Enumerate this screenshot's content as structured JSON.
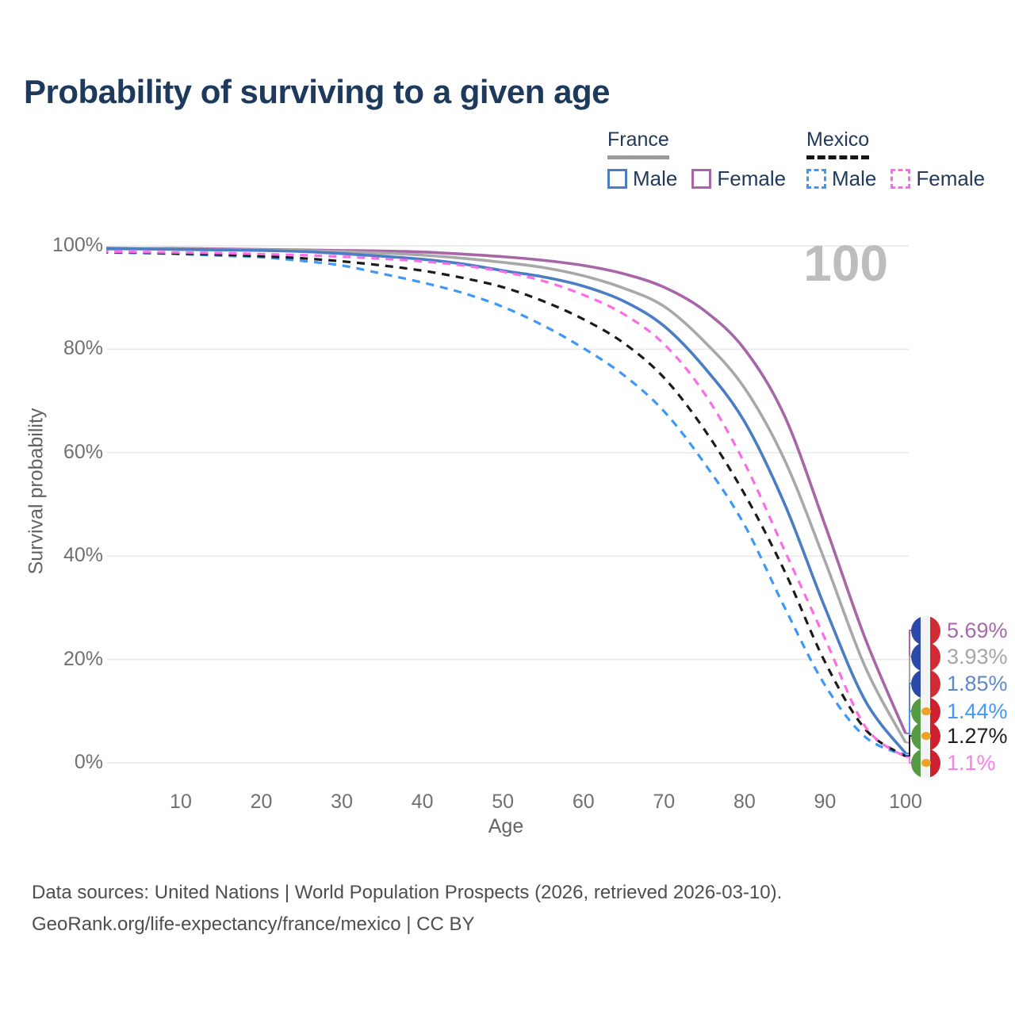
{
  "title": "Probability of surviving to a given age",
  "watermark": "100",
  "legend": {
    "groups": [
      {
        "country": "France",
        "line_style": "solid",
        "underline_color": "#9a9a9a",
        "items": [
          {
            "label": "Male",
            "color": "#4a7dc4"
          },
          {
            "label": "Female",
            "color": "#a766a7"
          }
        ]
      },
      {
        "country": "Mexico",
        "line_style": "dashed",
        "underline_color": "#141414",
        "items": [
          {
            "label": "Male",
            "color": "#3f97f7"
          },
          {
            "label": "Female",
            "color": "#fb6ce6"
          }
        ]
      }
    ]
  },
  "flags": {
    "france": {
      "colors": [
        "#2b4aa5",
        "#f4f4f4",
        "#d22b35"
      ]
    },
    "mexico": {
      "colors": [
        "#569a45",
        "#f4f4f4",
        "#cf2030"
      ],
      "emblem": "#efa229"
    }
  },
  "chart_data": {
    "type": "line",
    "title": "Probability of surviving to a given age",
    "xlabel": "Age",
    "ylabel": "Survival probability",
    "xlim": [
      0,
      100
    ],
    "ylim": [
      0,
      100
    ],
    "grid": true,
    "x_ticks": [
      10,
      20,
      30,
      40,
      50,
      60,
      70,
      80,
      90,
      100
    ],
    "y_ticks": [
      {
        "value": 0,
        "label": "0%"
      },
      {
        "value": 20,
        "label": "20%"
      },
      {
        "value": 40,
        "label": "40%"
      },
      {
        "value": 60,
        "label": "60%"
      },
      {
        "value": 80,
        "label": "80%"
      },
      {
        "value": 100,
        "label": "100%"
      }
    ],
    "hovered_age": 100,
    "ages": [
      0,
      5,
      10,
      15,
      20,
      25,
      30,
      35,
      40,
      45,
      50,
      55,
      60,
      65,
      70,
      75,
      80,
      85,
      90,
      95,
      100
    ],
    "series": [
      {
        "name": "France Female",
        "country": "France",
        "sex": "Female",
        "style": "solid",
        "color": "#a766a7",
        "label_color": "#a868aa",
        "flag": "france",
        "end_value": 5.69,
        "end_label": "5.69%",
        "values": [
          99.6,
          99.5,
          99.5,
          99.4,
          99.3,
          99.2,
          99.1,
          99.0,
          98.8,
          98.4,
          97.9,
          97.2,
          96.2,
          94.6,
          92.0,
          87.5,
          80.0,
          67.0,
          46.0,
          24.0,
          5.69
        ]
      },
      {
        "name": "France Total",
        "country": "France",
        "sex": "Total",
        "style": "solid",
        "color": "#a8a8a8",
        "label_color": "#a6a6a6",
        "flag": "france",
        "end_value": 3.93,
        "end_label": "3.93%",
        "values": [
          99.5,
          99.5,
          99.4,
          99.3,
          99.2,
          99.1,
          98.9,
          98.6,
          98.2,
          97.6,
          96.8,
          95.8,
          94.2,
          91.8,
          88.3,
          81.5,
          72.5,
          58.5,
          39.0,
          18.5,
          3.93
        ]
      },
      {
        "name": "France Male",
        "country": "France",
        "sex": "Male",
        "style": "solid",
        "color": "#4a7dc4",
        "label_color": "#5e88c8",
        "flag": "france",
        "end_value": 1.85,
        "end_label": "1.85%",
        "values": [
          99.4,
          99.4,
          99.3,
          99.2,
          99.1,
          98.9,
          98.5,
          98.0,
          97.4,
          96.5,
          95.2,
          94.0,
          92.2,
          89.3,
          84.5,
          76.5,
          66.0,
          50.0,
          30.0,
          12.0,
          1.85
        ]
      },
      {
        "name": "Mexico Male",
        "country": "Mexico",
        "sex": "Male",
        "style": "dashed",
        "color": "#3f97f7",
        "label_color": "#4499f7",
        "flag": "mexico",
        "end_value": 1.44,
        "end_label": "1.44%",
        "values": [
          98.7,
          98.6,
          98.4,
          98.1,
          97.8,
          97.1,
          96.2,
          94.6,
          92.9,
          90.9,
          88.2,
          84.6,
          80.2,
          75.0,
          68.0,
          58.0,
          46.0,
          30.0,
          15.0,
          5.0,
          1.44
        ]
      },
      {
        "name": "Mexico Total",
        "country": "Mexico",
        "sex": "Total",
        "style": "dashed",
        "color": "#1b1b1b",
        "label_color": "#1f1f1f",
        "flag": "mexico",
        "end_value": 1.27,
        "end_label": "1.27%",
        "values": [
          98.8,
          98.7,
          98.5,
          98.3,
          98.0,
          97.6,
          97.0,
          96.2,
          95.2,
          93.8,
          92.0,
          89.3,
          85.8,
          81.2,
          74.5,
          64.5,
          52.0,
          37.0,
          19.5,
          6.5,
          1.27
        ]
      },
      {
        "name": "Mexico Female",
        "country": "Mexico",
        "sex": "Female",
        "style": "dashed",
        "color": "#fb6ce6",
        "label_color": "#fb7ee9",
        "flag": "mexico",
        "end_value": 1.1,
        "end_label": "1.1%",
        "values": [
          98.9,
          98.8,
          98.7,
          98.6,
          98.4,
          98.2,
          97.9,
          97.5,
          97.0,
          96.2,
          95.0,
          93.2,
          90.5,
          86.8,
          81.0,
          71.5,
          58.0,
          41.0,
          24.0,
          7.0,
          1.1
        ]
      }
    ]
  },
  "footer": {
    "line1": "Data sources: United Nations | World Population Prospects (2026, retrieved 2026-03-10).",
    "line2": "GeoRank.org/life-expectancy/france/mexico | CC BY"
  }
}
